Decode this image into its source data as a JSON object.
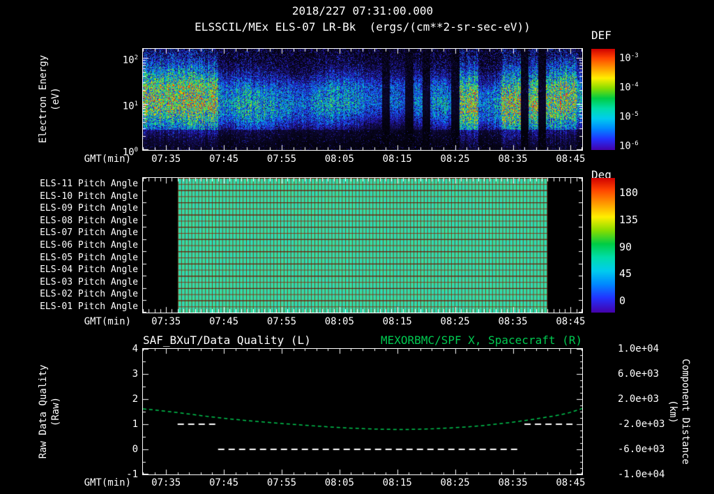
{
  "colors": {
    "background": "#000000",
    "text": "#ffffff",
    "accent_green": "#00c850",
    "pitch_fill": "#33dcaa",
    "pitch_grid": "#8c1e00"
  },
  "header": {
    "datetime": "2018/227 07:31:00.000",
    "title": "ELSSCIL/MEx ELS-07 LR-Bk  (ergs/(cm**2-sr-sec-eV))"
  },
  "labels": {
    "gmt": "GMT(min)"
  },
  "time_axis": {
    "start": "07:31",
    "end": "08:47",
    "ticks": [
      "07:35",
      "07:45",
      "07:55",
      "08:05",
      "08:15",
      "08:25",
      "08:35",
      "08:45"
    ]
  },
  "chart_data": [
    {
      "type": "heatmap",
      "name": "electron-energy-spectrogram",
      "title": "ELSSCIL/MEx ELS-07 LR-Bk",
      "units": "ergs/(cm**2-sr-sec-eV)",
      "xlabel": "GMT(min)",
      "ylabel_lines": [
        "Electron Energy",
        "(eV)"
      ],
      "y_scale": "log",
      "y_range_ev": [
        1,
        185
      ],
      "ytick_labels": [
        "10^2",
        "10^1",
        "10^0"
      ],
      "colorbar": {
        "title": "DEF",
        "scale": "log",
        "tick_labels": [
          "10^-3",
          "10^-4",
          "10^-5",
          "10^-6"
        ]
      },
      "features": {
        "band_energy_ev": [
          4,
          40
        ],
        "bright_intervals": [
          [
            "07:31",
            "07:44"
          ],
          [
            "08:25",
            "08:29"
          ],
          [
            "08:33",
            "08:46"
          ]
        ],
        "dropouts": [
          "08:13",
          "08:17",
          "08:20",
          "08:25",
          "08:37",
          "08:40"
        ]
      },
      "description": "Electron flux band between ~4 and ~40 eV across the interval; brightest 07:31-07:44, 08:25-08:29 and 08:33-08:46; blue speckle background at higher energies; narrow black dropout stripes near 08:13, 08:17, 08:20, 08:25, 08:37 and 08:40"
    },
    {
      "type": "heatmap",
      "name": "pitch-angle-panels",
      "rows": [
        "ELS-11 Pitch Angle",
        "ELS-10 Pitch Angle",
        "ELS-09 Pitch Angle",
        "ELS-08 Pitch Angle",
        "ELS-07 Pitch Angle",
        "ELS-06 Pitch Angle",
        "ELS-05 Pitch Angle",
        "ELS-04 Pitch Angle",
        "ELS-03 Pitch Angle",
        "ELS-02 Pitch Angle",
        "ELS-01 Pitch Angle"
      ],
      "xlabel": "GMT(min)",
      "data_start": "07:37",
      "data_end": "08:41",
      "uniform_value_deg": 95,
      "colorbar": {
        "title": "Deg",
        "ticks": [
          "180",
          "135",
          "90",
          "45",
          "0"
        ]
      },
      "description": "All eleven ELS anode pitch-angle rows show a near-uniform ~90-100 degree (cyan-green) value from 07:37 to 08:41 overlaid with a fine red-brown grid; black outside data coverage"
    },
    {
      "type": "line",
      "name": "data-quality-and-spacecraft-distance",
      "title_left": "SAF_BXuT/Data Quality (L)",
      "title_right": "MEXORBMC/SPF X, Spacecraft (R)",
      "xlabel": "GMT(min)",
      "ylabel_left_lines": [
        "Raw Data Quality",
        "(Raw)"
      ],
      "ylabel_right_lines": [
        "Component Distance",
        "(km)"
      ],
      "ylim_left": [
        -1,
        4
      ],
      "yticks_left": [
        "4",
        "3",
        "2",
        "1",
        "0",
        "-1"
      ],
      "ylim_right": [
        -10000,
        10000
      ],
      "ytick_labels_right": [
        "1.0e+04",
        "6.0e+03",
        "2.0e+03",
        "-2.0e+03",
        "-6.0e+03",
        "-1.0e+04"
      ],
      "series": [
        {
          "name": "Raw Data Quality",
          "axis": "left",
          "color": "#ffffff",
          "style": "dashed",
          "segments": [
            {
              "t0": "07:37",
              "t1": "07:44",
              "value": 1
            },
            {
              "t0": "07:44",
              "t1": "08:36",
              "value": 0
            },
            {
              "t0": "08:37",
              "t1": "08:46",
              "value": 1
            }
          ]
        },
        {
          "name": "Spacecraft X Component Distance",
          "axis": "right",
          "color": "#00c850",
          "style": "dashed",
          "points_km": [
            [
              "07:31",
              450
            ],
            [
              "07:35",
              100
            ],
            [
              "07:45",
              -1100
            ],
            [
              "07:55",
              -1900
            ],
            [
              "08:05",
              -2550
            ],
            [
              "08:13",
              -2850
            ],
            [
              "08:20",
              -2800
            ],
            [
              "08:28",
              -2400
            ],
            [
              "08:35",
              -1700
            ],
            [
              "08:40",
              -1000
            ],
            [
              "08:44",
              -400
            ],
            [
              "08:47",
              500
            ]
          ]
        }
      ]
    }
  ]
}
